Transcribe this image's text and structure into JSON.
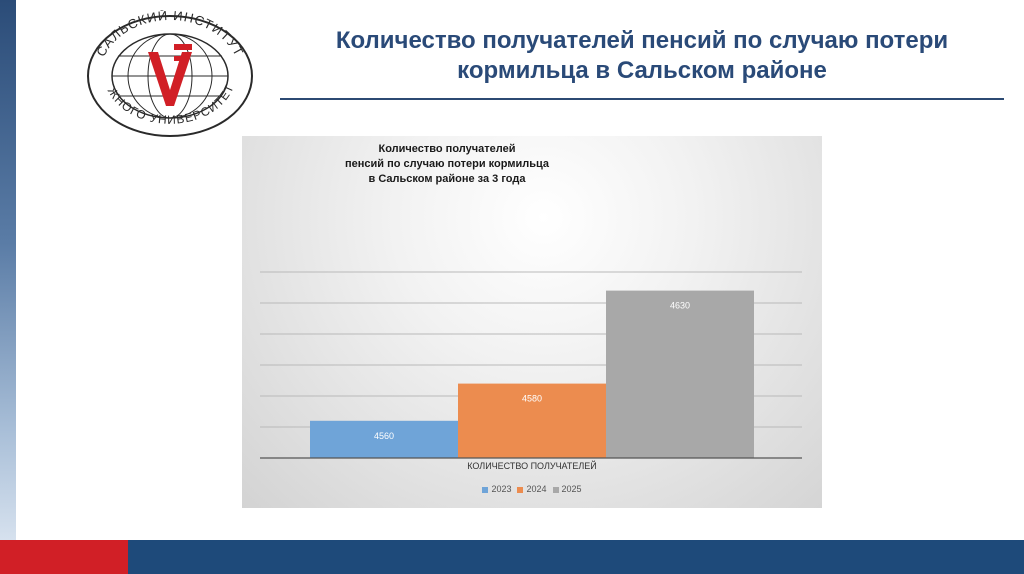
{
  "slide": {
    "title_line1": "Количество получателей пенсий по случаю потери",
    "title_line2": "кормильца в Сальском районе"
  },
  "logo": {
    "text_top": "САЛЬСКИЙ ИНСТИТУТ",
    "text_bottom": "ЮЖНОГО УНИВЕРСИТЕТА",
    "colors": {
      "ring": "#2a2a2a",
      "mark": "#d11f26",
      "globe": "#2a2a2a"
    }
  },
  "colors": {
    "accent_blue": "#2a4a78",
    "footer_red": "#d11f26",
    "footer_blue": "#1e4a7a"
  },
  "chart_data": {
    "type": "bar",
    "title_lines": [
      "Количество получателей",
      "пенсий по случаю потери кормильца",
      "в Сальском районе за 3 года"
    ],
    "categories": [
      "Количество получателей"
    ],
    "xlabel": "КОЛИЧЕСТВО ПОЛУЧАТЕЛЕЙ",
    "series": [
      {
        "name": "2023",
        "values": [
          4560
        ],
        "color": "#6fa4d8"
      },
      {
        "name": "2024",
        "values": [
          4580
        ],
        "color": "#ec8c4f"
      },
      {
        "name": "2025",
        "values": [
          4630
        ],
        "color": "#a8a8a8"
      }
    ],
    "ylim": [
      4540,
      4640
    ],
    "grid": true,
    "legend_position": "bottom"
  }
}
